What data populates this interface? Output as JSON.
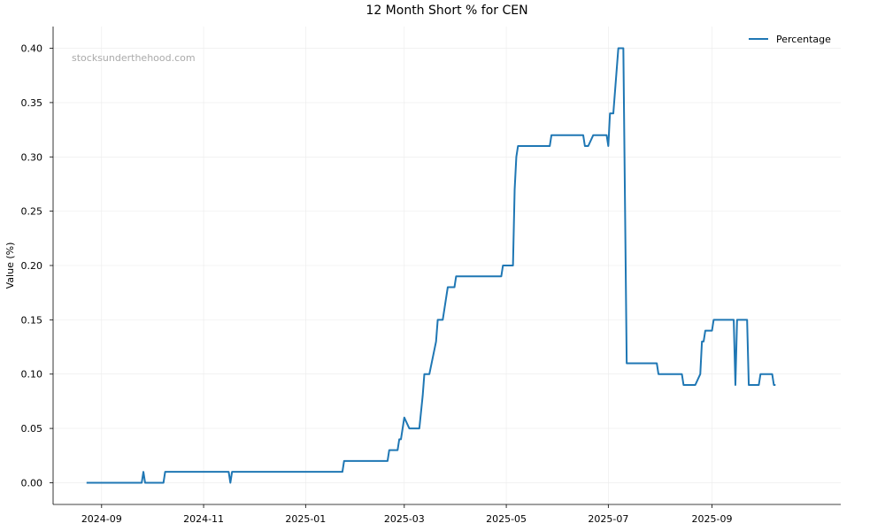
{
  "chart_data": {
    "type": "line",
    "title": "12 Month Short % for CEN",
    "xlabel": "",
    "ylabel": "Value (%)",
    "watermark": "stocksunderthehood.com",
    "legend": {
      "placement": "top-right",
      "entries": [
        "Percentage"
      ]
    },
    "grid": true,
    "line_color": "#1f77b4",
    "x_axis_type": "date",
    "xlim": [
      "2024-08-03",
      "2025-11-17"
    ],
    "ylim": [
      -0.02,
      0.42
    ],
    "x_ticks": [
      {
        "date": "2024-09-01",
        "label": "2024-09"
      },
      {
        "date": "2024-11-01",
        "label": "2024-11"
      },
      {
        "date": "2025-01-01",
        "label": "2025-01"
      },
      {
        "date": "2025-03-01",
        "label": "2025-03"
      },
      {
        "date": "2025-05-01",
        "label": "2025-05"
      },
      {
        "date": "2025-07-01",
        "label": "2025-07"
      },
      {
        "date": "2025-09-01",
        "label": "2025-09"
      }
    ],
    "y_ticks": [
      {
        "value": 0.0,
        "label": "0.00"
      },
      {
        "value": 0.05,
        "label": "0.05"
      },
      {
        "value": 0.1,
        "label": "0.10"
      },
      {
        "value": 0.15,
        "label": "0.15"
      },
      {
        "value": 0.2,
        "label": "0.20"
      },
      {
        "value": 0.25,
        "label": "0.25"
      },
      {
        "value": 0.3,
        "label": "0.30"
      },
      {
        "value": 0.35,
        "label": "0.35"
      },
      {
        "value": 0.4,
        "label": "0.40"
      }
    ],
    "series": [
      {
        "name": "Percentage",
        "points": [
          [
            "2024-08-23",
            0.0
          ],
          [
            "2024-09-25",
            0.0
          ],
          [
            "2024-09-26",
            0.01
          ],
          [
            "2024-09-27",
            0.0
          ],
          [
            "2024-10-08",
            0.0
          ],
          [
            "2024-10-09",
            0.01
          ],
          [
            "2024-11-16",
            0.01
          ],
          [
            "2024-11-17",
            0.0
          ],
          [
            "2024-11-18",
            0.01
          ],
          [
            "2025-01-23",
            0.01
          ],
          [
            "2025-01-24",
            0.02
          ],
          [
            "2025-02-19",
            0.02
          ],
          [
            "2025-02-20",
            0.03
          ],
          [
            "2025-02-25",
            0.03
          ],
          [
            "2025-02-26",
            0.04
          ],
          [
            "2025-02-27",
            0.04
          ],
          [
            "2025-03-01",
            0.06
          ],
          [
            "2025-03-04",
            0.05
          ],
          [
            "2025-03-10",
            0.05
          ],
          [
            "2025-03-12",
            0.08
          ],
          [
            "2025-03-13",
            0.1
          ],
          [
            "2025-03-16",
            0.1
          ],
          [
            "2025-03-20",
            0.13
          ],
          [
            "2025-03-21",
            0.15
          ],
          [
            "2025-03-24",
            0.15
          ],
          [
            "2025-03-27",
            0.18
          ],
          [
            "2025-03-31",
            0.18
          ],
          [
            "2025-04-01",
            0.19
          ],
          [
            "2025-04-28",
            0.19
          ],
          [
            "2025-04-29",
            0.2
          ],
          [
            "2025-05-05",
            0.2
          ],
          [
            "2025-05-06",
            0.27
          ],
          [
            "2025-05-07",
            0.3
          ],
          [
            "2025-05-08",
            0.31
          ],
          [
            "2025-05-27",
            0.31
          ],
          [
            "2025-05-28",
            0.32
          ],
          [
            "2025-06-16",
            0.32
          ],
          [
            "2025-06-17",
            0.31
          ],
          [
            "2025-06-19",
            0.31
          ],
          [
            "2025-06-22",
            0.32
          ],
          [
            "2025-06-30",
            0.32
          ],
          [
            "2025-07-01",
            0.31
          ],
          [
            "2025-07-02",
            0.34
          ],
          [
            "2025-07-04",
            0.34
          ],
          [
            "2025-07-06",
            0.38
          ],
          [
            "2025-07-07",
            0.4
          ],
          [
            "2025-07-10",
            0.4
          ],
          [
            "2025-07-12",
            0.11
          ],
          [
            "2025-07-30",
            0.11
          ],
          [
            "2025-07-31",
            0.1
          ],
          [
            "2025-08-14",
            0.1
          ],
          [
            "2025-08-15",
            0.09
          ],
          [
            "2025-08-22",
            0.09
          ],
          [
            "2025-08-25",
            0.1
          ],
          [
            "2025-08-26",
            0.13
          ],
          [
            "2025-08-27",
            0.13
          ],
          [
            "2025-08-28",
            0.14
          ],
          [
            "2025-09-01",
            0.14
          ],
          [
            "2025-09-02",
            0.15
          ],
          [
            "2025-09-14",
            0.15
          ],
          [
            "2025-09-15",
            0.09
          ],
          [
            "2025-09-16",
            0.15
          ],
          [
            "2025-09-22",
            0.15
          ],
          [
            "2025-09-23",
            0.09
          ],
          [
            "2025-09-29",
            0.09
          ],
          [
            "2025-09-30",
            0.1
          ],
          [
            "2025-10-07",
            0.1
          ],
          [
            "2025-10-08",
            0.09
          ],
          [
            "2025-10-09",
            0.09
          ]
        ]
      }
    ]
  }
}
